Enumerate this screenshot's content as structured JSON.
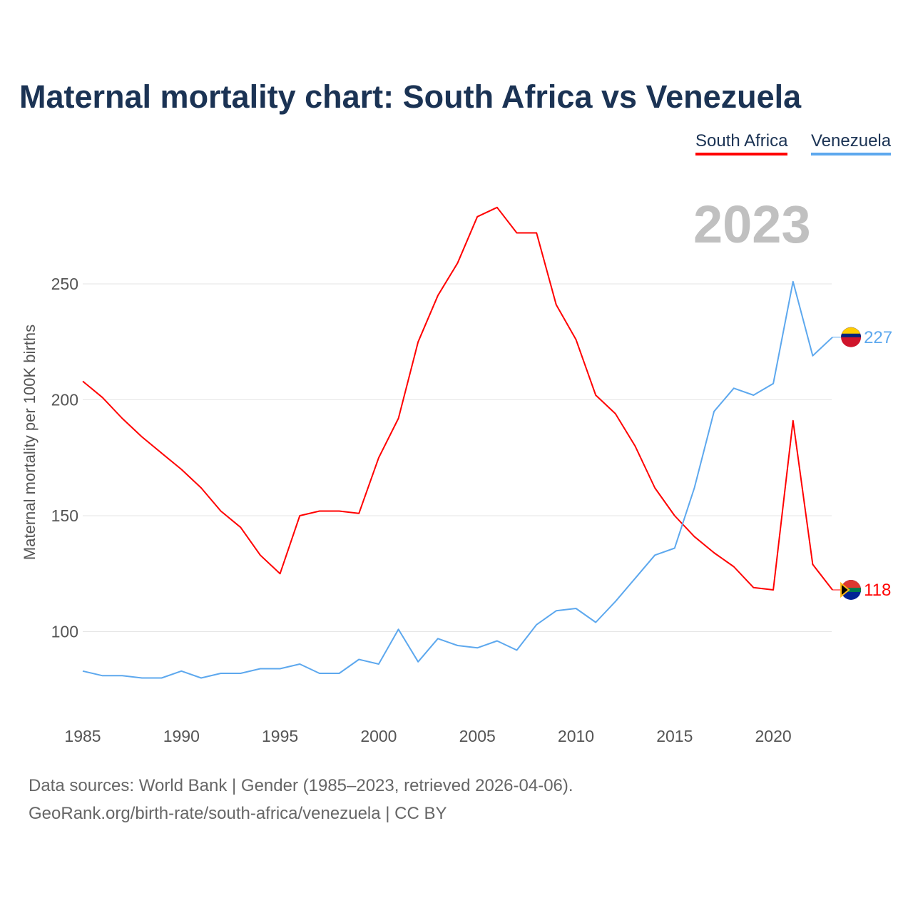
{
  "chart_data": {
    "type": "line",
    "title": "Maternal mortality chart: South Africa vs Venezuela",
    "xlabel": "",
    "ylabel": "Maternal mortality per 100K births",
    "year_label": "2023",
    "x": [
      1985,
      1986,
      1987,
      1988,
      1989,
      1990,
      1991,
      1992,
      1993,
      1994,
      1995,
      1996,
      1997,
      1998,
      1999,
      2000,
      2001,
      2002,
      2003,
      2004,
      2005,
      2006,
      2007,
      2008,
      2009,
      2010,
      2011,
      2012,
      2013,
      2014,
      2015,
      2016,
      2017,
      2018,
      2019,
      2020,
      2021,
      2022,
      2023
    ],
    "xticks": [
      "1985",
      "1990",
      "1995",
      "2000",
      "2005",
      "2010",
      "2015",
      "2020"
    ],
    "yticks": [
      "100",
      "150",
      "200",
      "250"
    ],
    "ylim": [
      62,
      285
    ],
    "grid": true,
    "legend_position": "top-right",
    "series": [
      {
        "name": "South Africa",
        "color": "#ff0000",
        "end_label": "118",
        "values": [
          208,
          201,
          192,
          184,
          177,
          170,
          162,
          152,
          145,
          133,
          125,
          150,
          152,
          152,
          151,
          175,
          192,
          225,
          245,
          259,
          279,
          283,
          272,
          272,
          241,
          226,
          202,
          194,
          180,
          162,
          150,
          141,
          134,
          128,
          119,
          118,
          191,
          129,
          118
        ]
      },
      {
        "name": "Venezuela",
        "color": "#5da8ee",
        "end_label": "227",
        "values": [
          83,
          81,
          81,
          80,
          80,
          83,
          80,
          82,
          82,
          84,
          84,
          86,
          82,
          82,
          88,
          86,
          101,
          87,
          97,
          94,
          93,
          96,
          92,
          103,
          109,
          110,
          104,
          113,
          123,
          133,
          136,
          162,
          195,
          205,
          202,
          207,
          251,
          219,
          227
        ]
      }
    ]
  },
  "footer": {
    "line1": "Data sources: World Bank | Gender (1985–2023, retrieved 2026-04-06).",
    "line2": "GeoRank.org/birth-rate/south-africa/venezuela | CC BY"
  }
}
